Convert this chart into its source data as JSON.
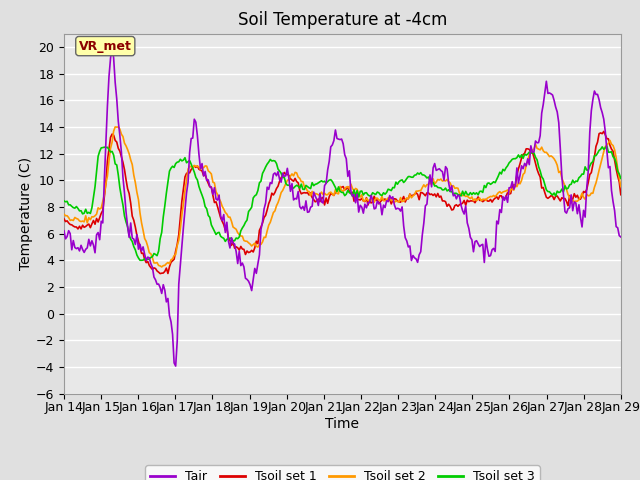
{
  "title": "Soil Temperature at -4cm",
  "xlabel": "Time",
  "ylabel": "Temperature (C)",
  "ylim": [
    -6,
    21
  ],
  "yticks": [
    -6,
    -4,
    -2,
    0,
    2,
    4,
    6,
    8,
    10,
    12,
    14,
    16,
    18,
    20
  ],
  "x_labels": [
    "Jan 14",
    "Jan 15",
    "Jan 16",
    "Jan 17",
    "Jan 18",
    "Jan 19",
    "Jan 20",
    "Jan 21",
    "Jan 22",
    "Jan 23",
    "Jan 24",
    "Jan 25",
    "Jan 26",
    "Jan 27",
    "Jan 28",
    "Jan 29"
  ],
  "annotation_text": "VR_met",
  "line_colors": {
    "Tair": "#9900cc",
    "Tsoil1": "#dd0000",
    "Tsoil2": "#ff9900",
    "Tsoil3": "#00cc00"
  },
  "legend_labels": [
    "Tair",
    "Tsoil set 1",
    "Tsoil set 2",
    "Tsoil set 3"
  ],
  "fig_bg": "#e0e0e0",
  "plot_bg": "#e8e8e8",
  "grid_color": "#ffffff",
  "title_fontsize": 12,
  "axis_fontsize": 10,
  "tick_fontsize": 9,
  "lw": 1.2
}
